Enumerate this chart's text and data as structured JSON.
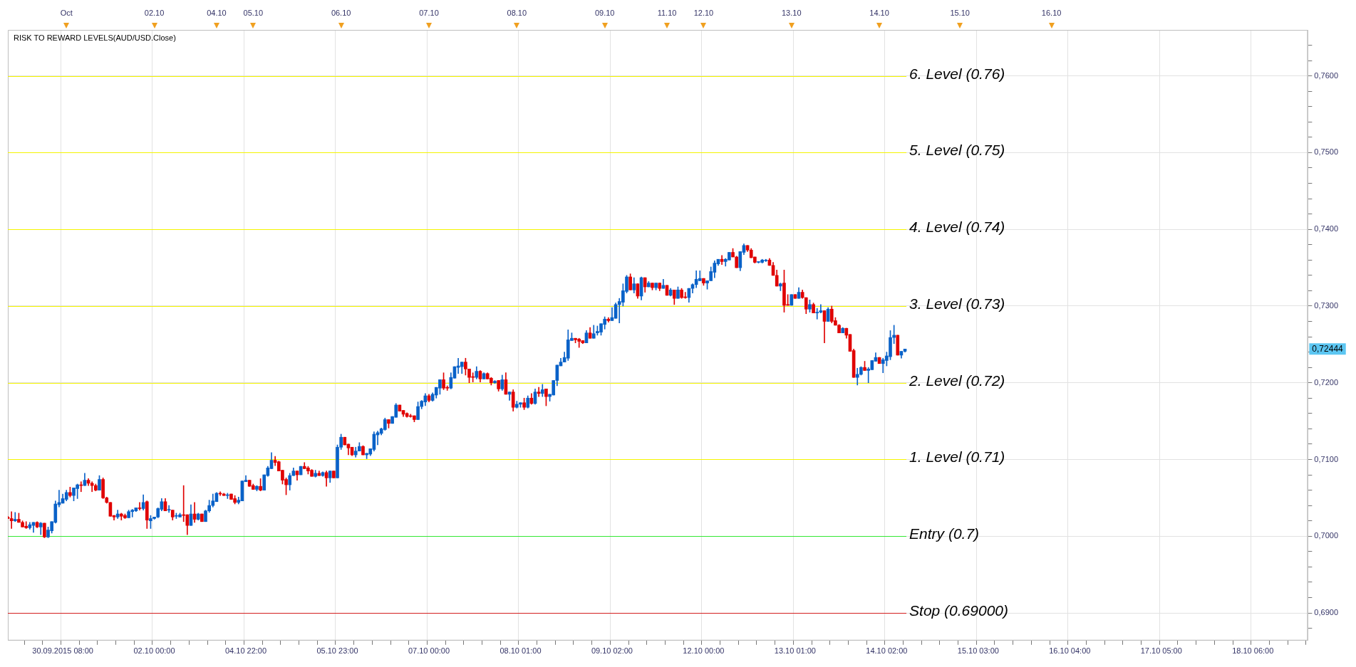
{
  "chart_data": {
    "type": "candlestick",
    "title": "RISK TO REWARD LEVELS(AUD/USD.Close)",
    "categories": [
      null,
      null,
      null,
      null,
      null,
      null,
      null,
      null,
      null,
      null,
      null,
      null,
      null,
      null,
      null,
      "30.09.2015 08:00",
      null,
      null,
      null,
      null,
      null,
      null,
      null,
      null,
      null,
      null,
      null,
      null,
      null,
      null,
      null,
      null,
      null,
      null,
      null,
      null,
      null,
      null,
      null,
      null,
      "02.10 00:00",
      null,
      null,
      null,
      null,
      null,
      null,
      null,
      null,
      null,
      null,
      null,
      null,
      null,
      null,
      null,
      null,
      null,
      null,
      null,
      null,
      null,
      null,
      null,
      null,
      "04.10 22:00",
      null,
      null,
      null,
      null,
      null,
      null,
      null,
      null,
      null,
      null,
      null,
      null,
      null,
      null,
      null,
      null,
      null,
      null,
      null,
      null,
      null,
      null,
      null,
      null,
      "05.10 23:00",
      null,
      null,
      null,
      null,
      null,
      null,
      null,
      null,
      null,
      null,
      null,
      null,
      null,
      null,
      null,
      null,
      null,
      null,
      null,
      null,
      null,
      null,
      null,
      null,
      "07.10 00:00",
      null,
      null,
      null,
      null,
      null,
      null,
      null,
      null,
      null,
      null,
      null,
      null,
      null,
      null,
      null,
      null,
      null,
      null,
      null,
      null,
      null,
      null,
      null,
      null,
      "08.10 01:00",
      null,
      null,
      null,
      null,
      null,
      null,
      null,
      null,
      null,
      null,
      null,
      null,
      null,
      null,
      null,
      null,
      null,
      null,
      null,
      null,
      null,
      null,
      null,
      null,
      "09.10 02:00",
      null,
      null,
      null,
      null,
      null,
      null,
      null,
      null,
      null,
      null,
      null,
      null,
      null,
      null,
      null,
      null,
      null,
      null,
      null,
      null,
      null,
      null,
      null,
      null,
      "12.10 00:00",
      null,
      null,
      null,
      null,
      null,
      null,
      null,
      null,
      null,
      null,
      null,
      null,
      null,
      null,
      null,
      null,
      null,
      null,
      null,
      null,
      null,
      null,
      null,
      null,
      "13.10 01:00",
      null,
      null,
      null,
      null,
      null,
      null,
      null,
      null,
      null,
      null,
      null,
      null,
      null,
      null,
      null,
      null,
      null,
      null,
      null,
      null,
      null,
      null,
      null,
      null,
      "14.10 02:00",
      null,
      null,
      null,
      null,
      null,
      null,
      null,
      null,
      null,
      null,
      null,
      null,
      null,
      null,
      null,
      null,
      null,
      null,
      null,
      null,
      null,
      null,
      null,
      null,
      "15.10 03:00",
      null,
      null,
      null,
      null,
      null,
      null,
      null,
      null,
      null,
      null,
      null,
      null,
      null,
      null,
      null,
      null,
      null,
      null,
      null,
      null,
      null,
      null,
      null,
      null,
      "16.10 04:00",
      null,
      null,
      null,
      null,
      null,
      null,
      null,
      null,
      null,
      null,
      null,
      null,
      null,
      null,
      null,
      null,
      null,
      null,
      null,
      null,
      null,
      null,
      null,
      null,
      "17.10 05:00",
      null,
      null,
      null,
      null,
      null,
      null,
      null,
      null,
      null,
      null,
      null,
      null,
      null,
      null,
      null,
      null,
      null,
      null,
      null,
      null,
      null,
      null,
      null,
      null,
      "18.10 06:00",
      null,
      null,
      null,
      null,
      null,
      null,
      null,
      null,
      null,
      null,
      null,
      null,
      null,
      null,
      null
    ],
    "ohlc": [
      [
        0.7025,
        0.7026,
        0.7023,
        0.7023
      ],
      [
        0.7023,
        0.7032,
        0.701,
        0.702
      ],
      [
        0.702,
        0.7031,
        0.7019,
        0.7022
      ],
      [
        0.7022,
        0.703,
        0.7018,
        0.7018
      ],
      [
        0.7018,
        0.702,
        0.7012,
        0.7012
      ],
      [
        0.7013,
        0.7019,
        0.701,
        0.7011
      ],
      [
        0.7011,
        0.7018,
        0.7009,
        0.7015
      ],
      [
        0.7014,
        0.7018,
        0.7005,
        0.7018
      ],
      [
        0.7018,
        0.7019,
        0.7011,
        0.7012
      ],
      [
        0.7012,
        0.7018,
        0.7002,
        0.7017
      ],
      [
        0.7017,
        0.7017,
        0.6998,
        0.6999
      ],
      [
        0.6999,
        0.7012,
        0.6998,
        0.7008
      ],
      [
        0.7007,
        0.7019,
        0.7004,
        0.7019
      ],
      [
        0.7018,
        0.7046,
        0.7017,
        0.7042
      ],
      [
        0.7041,
        0.706,
        0.7038,
        0.7044
      ],
      [
        0.7043,
        0.7055,
        0.7043,
        0.7049
      ],
      [
        0.7048,
        0.706,
        0.7046,
        0.7057
      ],
      [
        0.7057,
        0.7064,
        0.7051,
        0.7053
      ],
      [
        0.7053,
        0.7063,
        0.7046,
        0.7063
      ],
      [
        0.7062,
        0.7068,
        0.7049,
        0.7067
      ],
      [
        0.7067,
        0.7071,
        0.7058,
        0.7066
      ],
      [
        0.7066,
        0.7082,
        0.7066,
        0.7073
      ],
      [
        0.7073,
        0.7075,
        0.7066,
        0.7069
      ],
      [
        0.7069,
        0.7071,
        0.7058,
        0.7066
      ],
      [
        0.7066,
        0.7068,
        0.7059,
        0.706
      ],
      [
        0.706,
        0.7079,
        0.706,
        0.7074
      ],
      [
        0.7074,
        0.7076,
        0.7049,
        0.705
      ],
      [
        0.705,
        0.7051,
        0.7043,
        0.7044
      ],
      [
        0.7044,
        0.7044,
        0.7026,
        0.7026
      ],
      [
        0.7027,
        0.7027,
        0.7021,
        0.7025
      ],
      [
        0.7025,
        0.7034,
        0.7023,
        0.7029
      ],
      [
        0.7029,
        0.703,
        0.7021,
        0.7026
      ],
      [
        0.7027,
        0.7029,
        0.7023,
        0.7024
      ],
      [
        0.7024,
        0.7034,
        0.7024,
        0.7032
      ],
      [
        0.7032,
        0.7035,
        0.7025,
        0.7034
      ],
      [
        0.7033,
        0.7037,
        0.7032,
        0.7037
      ],
      [
        0.7037,
        0.7044,
        0.7034,
        0.7036
      ],
      [
        0.7036,
        0.7054,
        0.7034,
        0.7044
      ],
      [
        0.7045,
        0.7046,
        0.701,
        0.7021
      ],
      [
        0.702,
        0.7027,
        0.701,
        0.7023
      ],
      [
        0.7023,
        0.7025,
        0.7022,
        0.7025
      ],
      [
        0.7025,
        0.7037,
        0.7024,
        0.7036
      ],
      [
        0.7035,
        0.7049,
        0.7033,
        0.7045
      ],
      [
        0.7045,
        0.7049,
        0.7033,
        0.7033
      ],
      [
        0.7034,
        0.704,
        0.7031,
        0.7034
      ],
      [
        0.7034,
        0.7034,
        0.7021,
        0.7025
      ],
      [
        0.7026,
        0.703,
        0.7023,
        0.7026
      ],
      [
        0.7025,
        0.703,
        0.7025,
        0.7028
      ],
      [
        0.7028,
        0.7066,
        0.7019,
        0.7027
      ],
      [
        0.7028,
        0.7028,
        0.7002,
        0.7014
      ],
      [
        0.7014,
        0.7041,
        0.7014,
        0.7029
      ],
      [
        0.7029,
        0.7044,
        0.7018,
        0.7022
      ],
      [
        0.7022,
        0.703,
        0.7021,
        0.7029
      ],
      [
        0.7029,
        0.7029,
        0.7019,
        0.7019
      ],
      [
        0.7019,
        0.7034,
        0.7019,
        0.7033
      ],
      [
        0.7033,
        0.7047,
        0.7031,
        0.704
      ],
      [
        0.704,
        0.7055,
        0.7038,
        0.7046
      ],
      [
        0.7045,
        0.7057,
        0.7045,
        0.7056
      ],
      [
        0.7056,
        0.7058,
        0.7053,
        0.7055
      ],
      [
        0.7055,
        0.7056,
        0.7053,
        0.7053
      ],
      [
        0.7053,
        0.7056,
        0.7049,
        0.7054
      ],
      [
        0.7055,
        0.7055,
        0.7048,
        0.7048
      ],
      [
        0.7049,
        0.7053,
        0.7042,
        0.7044
      ],
      [
        0.7044,
        0.7051,
        0.7042,
        0.7047
      ],
      [
        0.7046,
        0.7072,
        0.7046,
        0.7072
      ],
      [
        0.7071,
        0.7079,
        0.7071,
        0.7073
      ],
      [
        0.7073,
        0.7073,
        0.7065,
        0.7065
      ],
      [
        0.7066,
        0.7068,
        0.7061,
        0.7061
      ],
      [
        0.7061,
        0.7066,
        0.7059,
        0.7065
      ],
      [
        0.7065,
        0.7075,
        0.7059,
        0.706
      ],
      [
        0.706,
        0.708,
        0.706,
        0.708
      ],
      [
        0.7079,
        0.7091,
        0.7078,
        0.7089
      ],
      [
        0.7088,
        0.7109,
        0.7088,
        0.7099
      ],
      [
        0.7099,
        0.7104,
        0.7092,
        0.7096
      ],
      [
        0.7097,
        0.7098,
        0.7085,
        0.7085
      ],
      [
        0.7086,
        0.7086,
        0.7068,
        0.7073
      ],
      [
        0.7074,
        0.7076,
        0.7054,
        0.7067
      ],
      [
        0.7067,
        0.7082,
        0.706,
        0.7079
      ],
      [
        0.7079,
        0.7089,
        0.7079,
        0.7085
      ],
      [
        0.7085,
        0.7085,
        0.7073,
        0.708
      ],
      [
        0.708,
        0.7091,
        0.708,
        0.7091
      ],
      [
        0.7091,
        0.7096,
        0.7088,
        0.7088
      ],
      [
        0.7089,
        0.7091,
        0.7081,
        0.7085
      ],
      [
        0.7086,
        0.7087,
        0.7078,
        0.7078
      ],
      [
        0.7078,
        0.7086,
        0.7077,
        0.7082
      ],
      [
        0.7082,
        0.7085,
        0.7079,
        0.7079
      ],
      [
        0.7079,
        0.7084,
        0.7078,
        0.7083
      ],
      [
        0.7083,
        0.7085,
        0.7065,
        0.7076
      ],
      [
        0.7076,
        0.7085,
        0.707,
        0.7085
      ],
      [
        0.7085,
        0.7085,
        0.7076,
        0.7076
      ],
      [
        0.7076,
        0.7119,
        0.7076,
        0.7116
      ],
      [
        0.7116,
        0.7133,
        0.7113,
        0.7129
      ],
      [
        0.7129,
        0.7129,
        0.7119,
        0.7119
      ],
      [
        0.712,
        0.712,
        0.7106,
        0.7115
      ],
      [
        0.7116,
        0.7116,
        0.7105,
        0.7106
      ],
      [
        0.7106,
        0.7116,
        0.7103,
        0.7111
      ],
      [
        0.7111,
        0.7122,
        0.7111,
        0.7117
      ],
      [
        0.7117,
        0.7118,
        0.7106,
        0.7106
      ],
      [
        0.7106,
        0.7108,
        0.7101,
        0.7108
      ],
      [
        0.7107,
        0.7114,
        0.7105,
        0.7114
      ],
      [
        0.7113,
        0.7136,
        0.7111,
        0.7133
      ],
      [
        0.7132,
        0.7137,
        0.7119,
        0.7135
      ],
      [
        0.7134,
        0.7141,
        0.7132,
        0.714
      ],
      [
        0.7139,
        0.7154,
        0.7138,
        0.7152
      ],
      [
        0.7152,
        0.7152,
        0.7141,
        0.7147
      ],
      [
        0.7147,
        0.7156,
        0.7147,
        0.7156
      ],
      [
        0.7155,
        0.7173,
        0.7155,
        0.7171
      ],
      [
        0.7171,
        0.7171,
        0.7163,
        0.7163
      ],
      [
        0.7164,
        0.7164,
        0.7156,
        0.7159
      ],
      [
        0.716,
        0.7161,
        0.7155,
        0.7156
      ],
      [
        0.7157,
        0.7159,
        0.7155,
        0.7156
      ],
      [
        0.7157,
        0.7157,
        0.7149,
        0.7152
      ],
      [
        0.7152,
        0.7175,
        0.7152,
        0.7169
      ],
      [
        0.7169,
        0.7177,
        0.7166,
        0.7176
      ],
      [
        0.7175,
        0.7186,
        0.717,
        0.7183
      ],
      [
        0.7183,
        0.7185,
        0.7175,
        0.7177
      ],
      [
        0.7177,
        0.7187,
        0.7176,
        0.7185
      ],
      [
        0.7184,
        0.7194,
        0.718,
        0.7194
      ],
      [
        0.7193,
        0.7204,
        0.7185,
        0.7204
      ],
      [
        0.7204,
        0.7213,
        0.7191,
        0.7193
      ],
      [
        0.7194,
        0.7196,
        0.719,
        0.7193
      ],
      [
        0.7193,
        0.7213,
        0.7192,
        0.7207
      ],
      [
        0.7206,
        0.7221,
        0.7206,
        0.7221
      ],
      [
        0.722,
        0.7232,
        0.7212,
        0.7222
      ],
      [
        0.7221,
        0.7227,
        0.7212,
        0.7227
      ],
      [
        0.7227,
        0.7232,
        0.721,
        0.7218
      ],
      [
        0.7218,
        0.7218,
        0.72,
        0.7207
      ],
      [
        0.7208,
        0.7213,
        0.7201,
        0.7207
      ],
      [
        0.7207,
        0.7221,
        0.7205,
        0.7215
      ],
      [
        0.7215,
        0.7216,
        0.7201,
        0.7205
      ],
      [
        0.7205,
        0.7213,
        0.7205,
        0.7212
      ],
      [
        0.7212,
        0.7213,
        0.7205,
        0.7205
      ],
      [
        0.7206,
        0.7207,
        0.7197,
        0.72
      ],
      [
        0.72,
        0.7203,
        0.7199,
        0.7202
      ],
      [
        0.7203,
        0.7203,
        0.7189,
        0.7192
      ],
      [
        0.7192,
        0.721,
        0.719,
        0.7204
      ],
      [
        0.7204,
        0.7213,
        0.7185,
        0.7185
      ],
      [
        0.7185,
        0.7188,
        0.7177,
        0.7188
      ],
      [
        0.7188,
        0.7191,
        0.7163,
        0.7168
      ],
      [
        0.7168,
        0.7176,
        0.7167,
        0.7172
      ],
      [
        0.7172,
        0.7174,
        0.7168,
        0.7174
      ],
      [
        0.7174,
        0.718,
        0.7165,
        0.7168
      ],
      [
        0.7168,
        0.7183,
        0.7167,
        0.718
      ],
      [
        0.718,
        0.7186,
        0.7172,
        0.7173
      ],
      [
        0.7173,
        0.7192,
        0.7172,
        0.7188
      ],
      [
        0.7188,
        0.7194,
        0.7182,
        0.7186
      ],
      [
        0.7186,
        0.7198,
        0.7182,
        0.7191
      ],
      [
        0.7192,
        0.7192,
        0.717,
        0.7182
      ],
      [
        0.7182,
        0.7185,
        0.7176,
        0.7185
      ],
      [
        0.7184,
        0.7203,
        0.7184,
        0.7203
      ],
      [
        0.7203,
        0.7223,
        0.7196,
        0.7223
      ],
      [
        0.7222,
        0.7232,
        0.7222,
        0.7227
      ],
      [
        0.7227,
        0.724,
        0.7227,
        0.7233
      ],
      [
        0.7232,
        0.7269,
        0.7229,
        0.7256
      ],
      [
        0.7255,
        0.7265,
        0.7255,
        0.7258
      ],
      [
        0.7258,
        0.7258,
        0.7252,
        0.7256
      ],
      [
        0.7257,
        0.7258,
        0.7246,
        0.7254
      ],
      [
        0.7255,
        0.7255,
        0.7251,
        0.7252
      ],
      [
        0.7252,
        0.7268,
        0.7252,
        0.7265
      ],
      [
        0.7265,
        0.7272,
        0.7258,
        0.7258
      ],
      [
        0.7258,
        0.7275,
        0.7258,
        0.7264
      ],
      [
        0.7265,
        0.7274,
        0.7262,
        0.7267
      ],
      [
        0.7266,
        0.7277,
        0.7262,
        0.7277
      ],
      [
        0.7276,
        0.7286,
        0.727,
        0.7283
      ],
      [
        0.7283,
        0.7285,
        0.7279,
        0.7281
      ],
      [
        0.7281,
        0.7298,
        0.7281,
        0.7285
      ],
      [
        0.7284,
        0.7304,
        0.7284,
        0.7302
      ],
      [
        0.7302,
        0.731,
        0.7278,
        0.7306
      ],
      [
        0.7305,
        0.7329,
        0.73,
        0.732
      ],
      [
        0.7319,
        0.734,
        0.7317,
        0.7338
      ],
      [
        0.7338,
        0.7342,
        0.7321,
        0.7321
      ],
      [
        0.7321,
        0.7337,
        0.7317,
        0.7329
      ],
      [
        0.7329,
        0.7329,
        0.731,
        0.7313
      ],
      [
        0.7313,
        0.7338,
        0.7308,
        0.7337
      ],
      [
        0.7337,
        0.7337,
        0.7318,
        0.7325
      ],
      [
        0.7325,
        0.7332,
        0.7325,
        0.733
      ],
      [
        0.733,
        0.733,
        0.7321,
        0.7324
      ],
      [
        0.7324,
        0.733,
        0.7321,
        0.733
      ],
      [
        0.733,
        0.733,
        0.732,
        0.7323
      ],
      [
        0.7323,
        0.7335,
        0.7323,
        0.7327
      ],
      [
        0.7327,
        0.7327,
        0.7314,
        0.7314
      ],
      [
        0.7314,
        0.7323,
        0.7313,
        0.7321
      ],
      [
        0.7321,
        0.7321,
        0.7302,
        0.731
      ],
      [
        0.731,
        0.7325,
        0.731,
        0.7321
      ],
      [
        0.7321,
        0.7323,
        0.731,
        0.7311
      ],
      [
        0.7312,
        0.7318,
        0.731,
        0.7311
      ],
      [
        0.7311,
        0.7323,
        0.7305,
        0.7323
      ],
      [
        0.7323,
        0.7329,
        0.7317,
        0.7328
      ],
      [
        0.7328,
        0.7346,
        0.7324,
        0.7335
      ],
      [
        0.7333,
        0.7346,
        0.7333,
        0.7336
      ],
      [
        0.7336,
        0.7336,
        0.7327,
        0.733
      ],
      [
        0.733,
        0.7333,
        0.7322,
        0.7333
      ],
      [
        0.7333,
        0.7351,
        0.7333,
        0.7345
      ],
      [
        0.7344,
        0.7359,
        0.7337,
        0.7356
      ],
      [
        0.7355,
        0.7361,
        0.7353,
        0.7361
      ],
      [
        0.7361,
        0.7366,
        0.7354,
        0.7358
      ],
      [
        0.7358,
        0.7362,
        0.7352,
        0.7361
      ],
      [
        0.736,
        0.737,
        0.736,
        0.737
      ],
      [
        0.737,
        0.7375,
        0.7364,
        0.7364
      ],
      [
        0.7364,
        0.7365,
        0.735,
        0.735
      ],
      [
        0.735,
        0.7371,
        0.7346,
        0.7371
      ],
      [
        0.737,
        0.7381,
        0.7367,
        0.7379
      ],
      [
        0.7379,
        0.7379,
        0.7371,
        0.7373
      ],
      [
        0.7373,
        0.7375,
        0.7363,
        0.7363
      ],
      [
        0.7364,
        0.7364,
        0.7356,
        0.7357
      ],
      [
        0.7357,
        0.7358,
        0.7356,
        0.7358
      ],
      [
        0.7357,
        0.7361,
        0.7356,
        0.736
      ],
      [
        0.7359,
        0.7361,
        0.7358,
        0.736
      ],
      [
        0.736,
        0.7362,
        0.7353,
        0.7353
      ],
      [
        0.7353,
        0.7357,
        0.734,
        0.734
      ],
      [
        0.734,
        0.7347,
        0.7326,
        0.7326
      ],
      [
        0.7326,
        0.733,
        0.732,
        0.7329
      ],
      [
        0.733,
        0.7347,
        0.7292,
        0.7301
      ],
      [
        0.7302,
        0.7315,
        0.7301,
        0.7301
      ],
      [
        0.7301,
        0.7315,
        0.7301,
        0.7315
      ],
      [
        0.7315,
        0.7315,
        0.731,
        0.731
      ],
      [
        0.731,
        0.7324,
        0.731,
        0.7318
      ],
      [
        0.7318,
        0.7321,
        0.731,
        0.7311
      ],
      [
        0.7311,
        0.7311,
        0.729,
        0.7296
      ],
      [
        0.7296,
        0.7308,
        0.7292,
        0.7302
      ],
      [
        0.7302,
        0.7304,
        0.7291,
        0.7291
      ],
      [
        0.7291,
        0.7297,
        0.7283,
        0.7292
      ],
      [
        0.7292,
        0.7302,
        0.7291,
        0.7294
      ],
      [
        0.7294,
        0.7294,
        0.7252,
        0.728
      ],
      [
        0.728,
        0.7298,
        0.728,
        0.7296
      ],
      [
        0.7296,
        0.73,
        0.7278,
        0.728
      ],
      [
        0.7281,
        0.7285,
        0.7275,
        0.7275
      ],
      [
        0.7275,
        0.7276,
        0.7265,
        0.7265
      ],
      [
        0.7265,
        0.7272,
        0.7265,
        0.7271
      ],
      [
        0.7271,
        0.7271,
        0.7258,
        0.7262
      ],
      [
        0.7263,
        0.7263,
        0.7241,
        0.7241
      ],
      [
        0.7242,
        0.7244,
        0.7207,
        0.7207
      ],
      [
        0.7207,
        0.7219,
        0.7197,
        0.7211
      ],
      [
        0.7211,
        0.7221,
        0.721,
        0.722
      ],
      [
        0.722,
        0.7228,
        0.7216,
        0.7216
      ],
      [
        0.7216,
        0.722,
        0.72,
        0.7218
      ],
      [
        0.7217,
        0.7229,
        0.7217,
        0.7229
      ],
      [
        0.7228,
        0.7239,
        0.7228,
        0.7233
      ],
      [
        0.7233,
        0.7233,
        0.7225,
        0.7225
      ],
      [
        0.7225,
        0.7232,
        0.7213,
        0.723
      ],
      [
        0.7229,
        0.724,
        0.7222,
        0.7235
      ],
      [
        0.7234,
        0.7268,
        0.723,
        0.7259
      ],
      [
        0.7259,
        0.7275,
        0.7251,
        0.7262
      ],
      [
        0.7262,
        0.7262,
        0.7236,
        0.7236
      ],
      [
        0.7236,
        0.7241,
        0.7232,
        0.7241
      ],
      [
        0.7241,
        0.7244,
        0.724,
        0.7244
      ],
      null,
      null,
      null,
      null,
      null,
      null,
      null,
      null,
      null,
      null,
      null,
      null,
      null,
      null,
      null,
      null,
      null,
      null,
      null,
      null,
      null,
      null,
      null,
      null,
      null,
      null,
      null,
      null,
      null,
      null,
      null,
      null,
      null,
      null,
      null,
      null,
      null,
      null,
      null,
      null,
      null,
      null,
      null,
      null,
      null,
      null,
      null,
      null,
      null,
      null,
      null,
      null,
      null,
      null,
      null,
      null,
      null,
      null,
      null,
      null,
      null,
      null,
      null,
      null,
      null,
      null,
      null,
      null,
      null,
      null,
      null,
      null,
      null,
      null,
      null,
      null,
      null,
      null,
      null,
      null,
      null,
      null,
      null,
      null,
      null,
      null,
      null,
      null,
      null,
      null,
      null,
      null,
      null,
      null,
      null,
      null,
      null,
      null,
      null,
      null,
      null,
      null,
      null,
      null,
      null,
      null,
      null,
      null,
      null,
      null
    ],
    "ylim": [
      0.6864,
      0.766
    ],
    "yticks": [
      {
        "value": 0.688,
        "label": null
      },
      {
        "value": 0.69,
        "label": "0,6900"
      },
      {
        "value": 0.692,
        "label": null
      },
      {
        "value": 0.694,
        "label": null
      },
      {
        "value": 0.696,
        "label": null
      },
      {
        "value": 0.698,
        "label": null
      },
      {
        "value": 0.7,
        "label": "0,7000"
      },
      {
        "value": 0.702,
        "label": null
      },
      {
        "value": 0.704,
        "label": null
      },
      {
        "value": 0.706,
        "label": null
      },
      {
        "value": 0.708,
        "label": null
      },
      {
        "value": 0.71,
        "label": "0,7100"
      },
      {
        "value": 0.712,
        "label": null
      },
      {
        "value": 0.714,
        "label": null
      },
      {
        "value": 0.716,
        "label": null
      },
      {
        "value": 0.718,
        "label": null
      },
      {
        "value": 0.72,
        "label": "0,7200"
      },
      {
        "value": 0.722,
        "label": null
      },
      {
        "value": 0.724,
        "label": null
      },
      {
        "value": 0.726,
        "label": null
      },
      {
        "value": 0.728,
        "label": null
      },
      {
        "value": 0.73,
        "label": "0,7300"
      },
      {
        "value": 0.732,
        "label": null
      },
      {
        "value": 0.734,
        "label": null
      },
      {
        "value": 0.736,
        "label": null
      },
      {
        "value": 0.738,
        "label": null
      },
      {
        "value": 0.74,
        "label": "0,7400"
      },
      {
        "value": 0.742,
        "label": null
      },
      {
        "value": 0.744,
        "label": null
      },
      {
        "value": 0.746,
        "label": null
      },
      {
        "value": 0.748,
        "label": null
      },
      {
        "value": 0.75,
        "label": "0,7500"
      },
      {
        "value": 0.752,
        "label": null
      },
      {
        "value": 0.754,
        "label": null
      },
      {
        "value": 0.756,
        "label": null
      },
      {
        "value": 0.758,
        "label": null
      },
      {
        "value": 0.76,
        "label": "0,7600"
      },
      {
        "value": 0.762,
        "label": null
      },
      {
        "value": 0.764,
        "label": null
      }
    ],
    "grid": true,
    "ref_lines": [
      {
        "axis": "y",
        "value": 0.76,
        "label": "6. Level (0.76)",
        "color": "#f5f500"
      },
      {
        "axis": "y",
        "value": 0.75,
        "label": "5. Level (0.75)",
        "color": "#f5f500"
      },
      {
        "axis": "y",
        "value": 0.74,
        "label": "4. Level (0.74)",
        "color": "#f5f500"
      },
      {
        "axis": "y",
        "value": 0.73,
        "label": "3. Level (0.73)",
        "color": "#f5f500"
      },
      {
        "axis": "y",
        "value": 0.72,
        "label": "2. Level (0.72)",
        "color": "#f5f500"
      },
      {
        "axis": "y",
        "value": 0.71,
        "label": "1. Level (0.71)",
        "color": "#f5f500"
      },
      {
        "axis": "y",
        "value": 0.7,
        "label": "Entry (0.7)",
        "color": "#33e833"
      },
      {
        "axis": "y",
        "value": 0.69,
        "label": "Stop (0.69000)",
        "color": "#d42020"
      }
    ],
    "annotations": [
      "Oct",
      "02.10",
      "04.10",
      "05.10",
      "06.10",
      "07.10",
      "08.10",
      "09.10",
      "11.10",
      "12.10",
      "13.10",
      "14.10",
      "15.10",
      "16.10",
      "0,72444"
    ]
  }
}
